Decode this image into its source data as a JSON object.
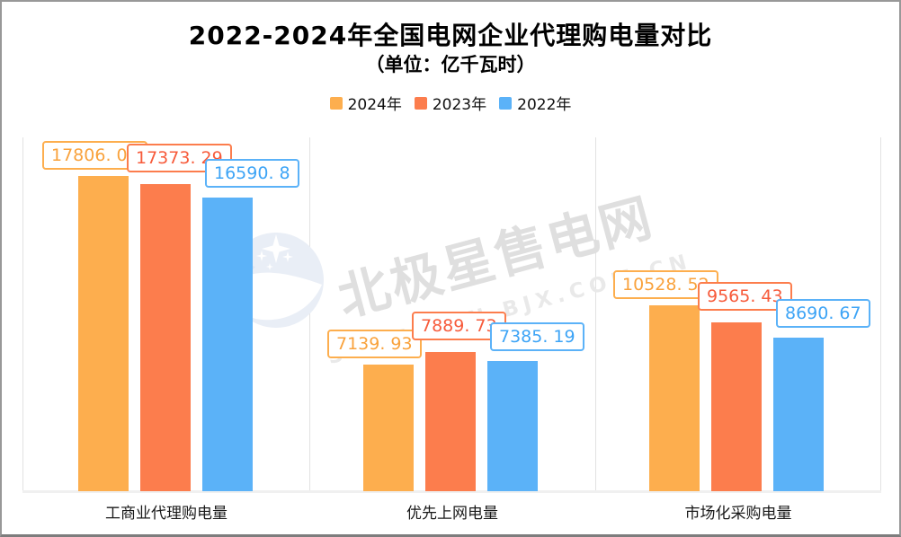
{
  "page": {
    "title": "2022-2024年全国电网企业代理购电量对比",
    "subtitle": "（单位：亿千瓦时）"
  },
  "watermark": {
    "brand_text": "北极星售电网",
    "domain_text": "SHOUDIAN.BJX.COM.CN",
    "logo": "bjx-star-moon-logo",
    "brand_color": "#dfdfdf",
    "logo_color": "#e9eef6"
  },
  "chart_data": {
    "type": "bar",
    "title": "2022-2024年全国电网企业代理购电量对比",
    "subtitle": "（单位：亿千瓦时）",
    "categories": [
      "工商业代理购电量",
      "优先上网电量",
      "市场化采购电量"
    ],
    "series": [
      {
        "name": "2024年",
        "color": "#FDAE4E",
        "label_text_color": "#F9A23C",
        "values": [
          17806.05,
          7139.93,
          10528.52
        ],
        "labels": [
          "17806. 05",
          "7139. 93",
          "10528. 52"
        ]
      },
      {
        "name": "2023年",
        "color": "#FC7D4D",
        "label_text_color": "#F75B3B",
        "values": [
          17373.29,
          7889.73,
          9565.43
        ],
        "labels": [
          "17373. 29",
          "7889. 73",
          "9565. 43"
        ]
      },
      {
        "name": "2022年",
        "color": "#5BB2F8",
        "label_text_color": "#3DA4F6",
        "values": [
          16590.8,
          7385.19,
          8690.67
        ],
        "labels": [
          "16590. 8",
          "7385. 19",
          "8690. 67"
        ]
      }
    ],
    "ylim": [
      0,
      20000
    ],
    "xlabel": "",
    "ylabel": "",
    "grid": "vertical-column-separators",
    "legend_position": "top",
    "value_labels": "boxed-above-bars"
  }
}
